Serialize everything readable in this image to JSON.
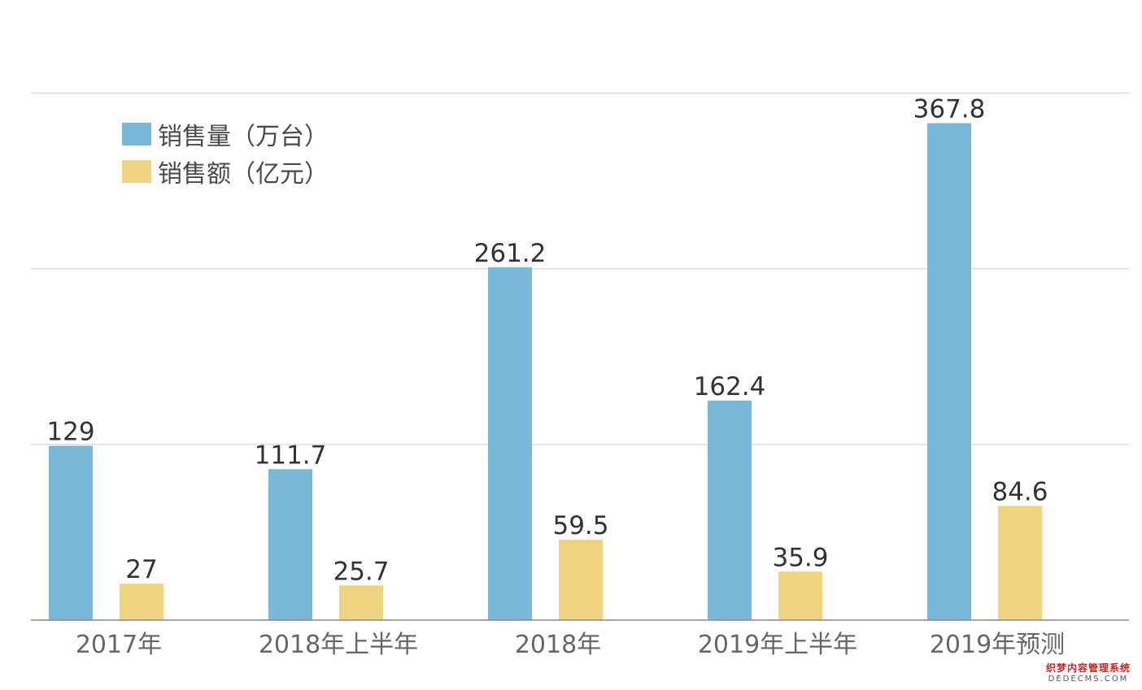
{
  "chart_data": {
    "type": "bar",
    "categories": [
      "2017年",
      "2018年上半年",
      "2018年",
      "2019年上半年",
      "2019年预测"
    ],
    "series": [
      {
        "name": "销售量（万台）",
        "values": [
          129,
          111.7,
          261.2,
          162.4,
          367.8
        ],
        "labels": [
          "129",
          "111.7",
          "261.2",
          "162.4",
          "367.8"
        ],
        "color": "#7ab8da"
      },
      {
        "name": "销售额（亿元）",
        "values": [
          27,
          25.7,
          59.5,
          35.9,
          84.6
        ],
        "labels": [
          "27",
          "25.7",
          "59.5",
          "35.9",
          "84.6"
        ],
        "color": "#f0d381"
      }
    ],
    "ylim": [
      0,
      375
    ],
    "grid": true,
    "legend_position": "top-left",
    "title": "",
    "xlabel": "",
    "ylabel": ""
  },
  "watermark": {
    "line1": "织梦内容管理系统",
    "line2": "DEDECMS.COM"
  },
  "colors": {
    "grid": "#cfcfcf",
    "axis": "#888888",
    "value_text": "#333333",
    "tick_text": "#666666"
  }
}
